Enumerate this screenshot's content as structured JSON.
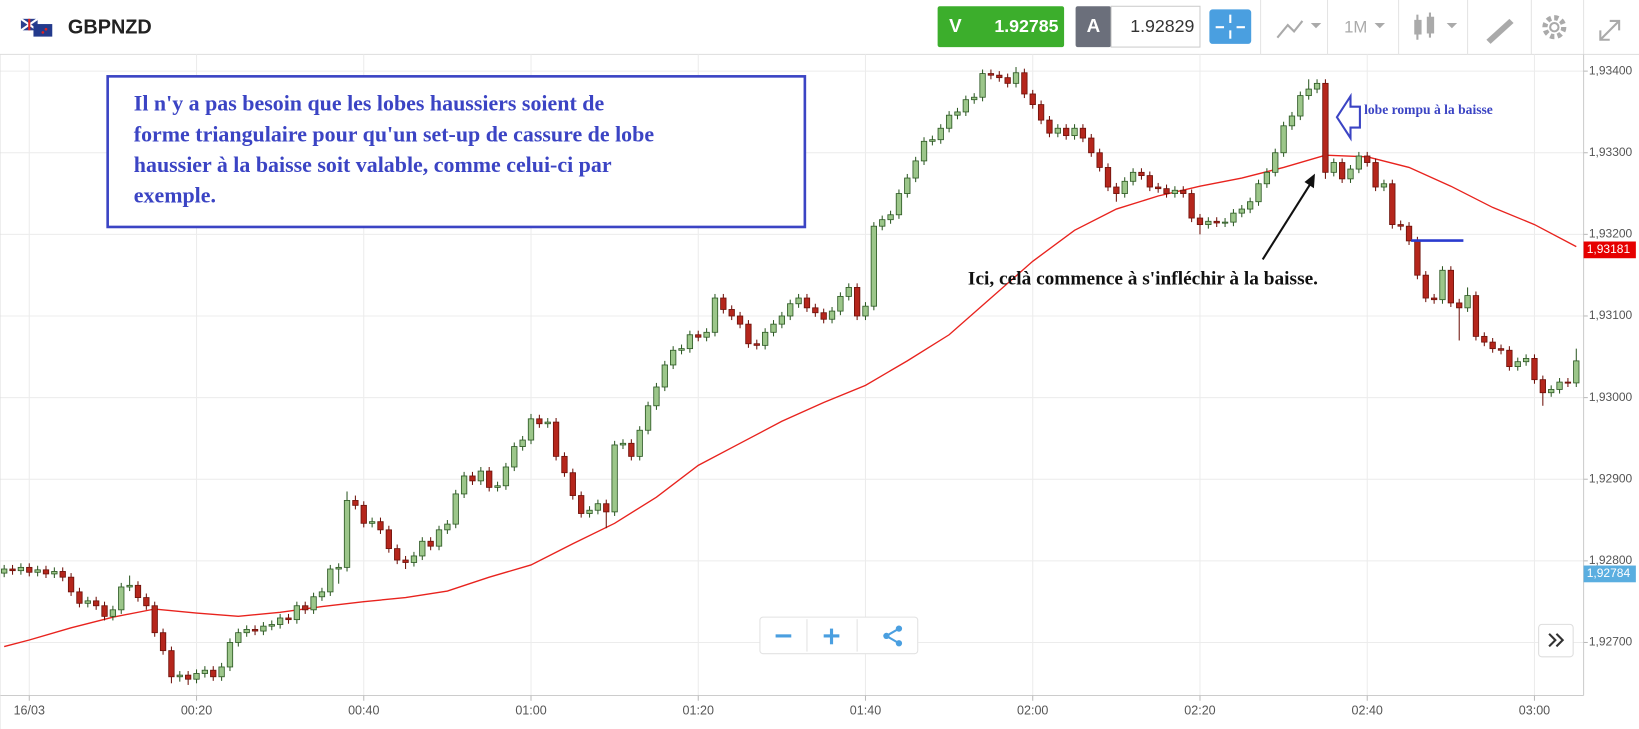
{
  "header": {
    "symbol": "GBPNZD",
    "sell_label": "V",
    "sell_price": 1.92785,
    "buy_label": "A",
    "buy_price": 1.92829,
    "timeframe": "1M"
  },
  "chart_data": {
    "type": "candlestick",
    "xlim": [
      -3.5,
      185.875
    ],
    "ylim": [
      1.92635,
      1.934205
    ],
    "xticks": [
      {
        "value": 0,
        "label": "16/03"
      },
      {
        "value": 20,
        "label": "00:20"
      },
      {
        "value": 40,
        "label": "00:40"
      },
      {
        "value": 60,
        "label": "01:00"
      },
      {
        "value": 80,
        "label": "01:20"
      },
      {
        "value": 100,
        "label": "01:40"
      },
      {
        "value": 120,
        "label": "02:00"
      },
      {
        "value": 140,
        "label": "02:20"
      },
      {
        "value": 160,
        "label": "02:40"
      },
      {
        "value": 180,
        "label": "03:00"
      }
    ],
    "yticks": [
      {
        "value": 1.927,
        "label": "1,92700"
      },
      {
        "value": 1.928,
        "label": "1,92800"
      },
      {
        "value": 1.929,
        "label": "1,92900"
      },
      {
        "value": 1.93,
        "label": "1,93000"
      },
      {
        "value": 1.931,
        "label": "1,93100"
      },
      {
        "value": 1.932,
        "label": "1,93200"
      },
      {
        "value": 1.933,
        "label": "1,93300"
      },
      {
        "value": 1.934,
        "label": "1,93400"
      }
    ],
    "grid": true,
    "up_color": "#9cc68a",
    "down_color": "#b5261c",
    "x": [
      -3,
      -2,
      -1,
      0,
      1,
      2,
      3,
      4,
      5,
      6,
      7,
      8,
      9,
      10,
      11,
      12,
      13,
      14,
      15,
      16,
      17,
      18,
      19,
      20,
      21,
      22,
      23,
      24,
      25,
      26,
      27,
      28,
      29,
      30,
      31,
      32,
      33,
      34,
      35,
      36,
      37,
      38,
      39,
      40,
      41,
      42,
      43,
      44,
      45,
      46,
      47,
      48,
      49,
      50,
      51,
      52,
      53,
      54,
      55,
      56,
      57,
      58,
      59,
      60,
      61,
      62,
      63,
      64,
      65,
      66,
      67,
      68,
      69,
      70,
      71,
      72,
      73,
      74,
      75,
      76,
      77,
      78,
      79,
      80,
      81,
      82,
      83,
      84,
      85,
      86,
      87,
      88,
      89,
      90,
      91,
      92,
      93,
      94,
      95,
      96,
      97,
      98,
      99,
      100,
      101,
      102,
      103,
      104,
      105,
      106,
      107,
      108,
      109,
      110,
      111,
      112,
      113,
      114,
      115,
      116,
      117,
      118,
      119,
      120,
      121,
      122,
      123,
      124,
      125,
      126,
      127,
      128,
      129,
      130,
      131,
      132,
      133,
      134,
      135,
      136,
      137,
      138,
      139,
      140,
      141,
      142,
      143,
      144,
      145,
      146,
      147,
      148,
      149,
      150,
      151,
      152,
      153,
      154,
      155,
      156,
      157,
      158,
      159,
      160,
      161,
      162,
      163,
      164,
      165,
      166,
      167,
      168,
      169,
      170,
      171,
      172,
      173,
      174,
      175,
      176,
      177,
      178,
      179,
      180,
      181,
      182,
      183,
      184,
      185
    ],
    "open": [
      1.92785,
      1.9279,
      1.92788,
      1.92792,
      1.92786,
      1.92789,
      1.92784,
      1.92787,
      1.9278,
      1.92762,
      1.92748,
      1.92751,
      1.92745,
      1.92732,
      1.9274,
      1.92768,
      1.9277,
      1.92755,
      1.92745,
      1.92712,
      1.9269,
      1.92658,
      1.9266,
      1.92655,
      1.92662,
      1.92666,
      1.92658,
      1.9267,
      1.927,
      1.92712,
      1.92716,
      1.92714,
      1.9272,
      1.92722,
      1.9273,
      1.92728,
      1.92745,
      1.9274,
      1.92756,
      1.92762,
      1.9279,
      1.92792,
      1.92874,
      1.92868,
      1.92846,
      1.92848,
      1.92838,
      1.92815,
      1.92801,
      1.92798,
      1.92806,
      1.92824,
      1.92818,
      1.92838,
      1.92845,
      1.92882,
      1.92904,
      1.92898,
      1.9291,
      1.9289,
      1.92892,
      1.92915,
      1.9294,
      1.92948,
      1.92974,
      1.92968,
      1.9297,
      1.92928,
      1.92908,
      1.9288,
      1.92858,
      1.92862,
      1.9287,
      1.9286,
      1.92942,
      1.92944,
      1.92928,
      1.9296,
      1.9299,
      1.93013,
      1.9304,
      1.93058,
      1.9306,
      1.93077,
      1.93074,
      1.9308,
      1.93122,
      1.93108,
      1.931,
      1.9309,
      1.93066,
      1.93064,
      1.9308,
      1.9309,
      1.931,
      1.93115,
      1.93122,
      1.9311,
      1.93104,
      1.93096,
      1.93106,
      1.93124,
      1.93135,
      1.931,
      1.93112,
      1.9321,
      1.93218,
      1.93224,
      1.9325,
      1.93269,
      1.9329,
      1.93314,
      1.93316,
      1.9333,
      1.93346,
      1.9335,
      1.93365,
      1.93368,
      1.93397,
      1.93395,
      1.93392,
      1.93385,
      1.93398,
      1.93372,
      1.93359,
      1.9334,
      1.93324,
      1.9333,
      1.93321,
      1.9333,
      1.93318,
      1.933,
      1.93282,
      1.93258,
      1.9325,
      1.93265,
      1.93276,
      1.93272,
      1.93258,
      1.93256,
      1.9325,
      1.93254,
      1.9325,
      1.9322,
      1.93212,
      1.93216,
      1.93214,
      1.93215,
      1.93226,
      1.93231,
      1.9324,
      1.93262,
      1.93276,
      1.933,
      1.93333,
      1.93345,
      1.9337,
      1.93378,
      1.93385,
      1.93276,
      1.93288,
      1.93268,
      1.9328,
      1.93296,
      1.93288,
      1.93258,
      1.93262,
      1.93212,
      1.9321,
      1.93192,
      1.9315,
      1.93122,
      1.9312,
      1.93156,
      1.93116,
      1.9311,
      1.93125,
      1.93075,
      1.93068,
      1.9306,
      1.93058,
      1.93038,
      1.93044,
      1.93048,
      1.93022,
      1.93006,
      1.9301,
      1.93019,
      1.93018
    ],
    "high": [
      1.92795,
      1.92795,
      1.92797,
      1.92797,
      1.92794,
      1.92794,
      1.92792,
      1.92792,
      1.92785,
      1.92767,
      1.92756,
      1.92756,
      1.9275,
      1.92745,
      1.92773,
      1.92782,
      1.92775,
      1.9276,
      1.9275,
      1.92717,
      1.92695,
      1.92665,
      1.92665,
      1.92667,
      1.92671,
      1.92671,
      1.92675,
      1.92705,
      1.92717,
      1.92721,
      1.92721,
      1.92725,
      1.92727,
      1.92735,
      1.92735,
      1.9275,
      1.9275,
      1.92761,
      1.92767,
      1.92795,
      1.92797,
      1.92885,
      1.9288,
      1.92873,
      1.92853,
      1.92853,
      1.92843,
      1.9282,
      1.92806,
      1.92811,
      1.92829,
      1.92829,
      1.92843,
      1.9285,
      1.92887,
      1.92909,
      1.92909,
      1.92915,
      1.92915,
      1.92897,
      1.9292,
      1.92945,
      1.92953,
      1.9298,
      1.92979,
      1.92975,
      1.92975,
      1.92933,
      1.92913,
      1.92885,
      1.92867,
      1.92875,
      1.92875,
      1.92947,
      1.92949,
      1.92949,
      1.92965,
      1.92995,
      1.93018,
      1.93045,
      1.93063,
      1.93065,
      1.93082,
      1.93082,
      1.93085,
      1.93127,
      1.93127,
      1.93113,
      1.93105,
      1.93095,
      1.93071,
      1.93085,
      1.93095,
      1.93105,
      1.9312,
      1.93127,
      1.93127,
      1.93115,
      1.93109,
      1.93111,
      1.93129,
      1.9314,
      1.9314,
      1.93117,
      1.93215,
      1.93223,
      1.93229,
      1.93255,
      1.93274,
      1.93295,
      1.93319,
      1.93321,
      1.93335,
      1.93351,
      1.93355,
      1.9337,
      1.93373,
      1.93402,
      1.93402,
      1.934,
      1.93397,
      1.93405,
      1.93403,
      1.93377,
      1.93364,
      1.93345,
      1.93335,
      1.93335,
      1.93335,
      1.93335,
      1.93323,
      1.93305,
      1.93287,
      1.93263,
      1.9327,
      1.93281,
      1.93281,
      1.93277,
      1.93263,
      1.93261,
      1.93259,
      1.93259,
      1.93255,
      1.93225,
      1.93221,
      1.93221,
      1.9322,
      1.93231,
      1.93236,
      1.93245,
      1.93267,
      1.93281,
      1.93305,
      1.93338,
      1.9335,
      1.93375,
      1.9339,
      1.9339,
      1.9339,
      1.93293,
      1.93293,
      1.93285,
      1.93301,
      1.93301,
      1.93293,
      1.93267,
      1.93267,
      1.93217,
      1.93215,
      1.93197,
      1.93155,
      1.93127,
      1.93161,
      1.93161,
      1.93121,
      1.93135,
      1.9313,
      1.9308,
      1.93073,
      1.93065,
      1.93063,
      1.93049,
      1.93053,
      1.93053,
      1.93027,
      1.93015,
      1.93024,
      1.93024,
      1.9306
    ],
    "low": [
      1.9278,
      1.92783,
      1.92783,
      1.92781,
      1.92781,
      1.92779,
      1.92779,
      1.92775,
      1.92757,
      1.92743,
      1.92743,
      1.9274,
      1.92727,
      1.92727,
      1.92735,
      1.92763,
      1.9275,
      1.9274,
      1.92707,
      1.92685,
      1.9265,
      1.92652,
      1.92648,
      1.9265,
      1.92657,
      1.92653,
      1.92653,
      1.92665,
      1.92695,
      1.92707,
      1.92709,
      1.92709,
      1.92715,
      1.92717,
      1.92723,
      1.92723,
      1.92735,
      1.92735,
      1.92751,
      1.92757,
      1.92772,
      1.92787,
      1.92863,
      1.92841,
      1.92841,
      1.92833,
      1.9281,
      1.92796,
      1.9279,
      1.92793,
      1.92801,
      1.92813,
      1.92813,
      1.92833,
      1.9284,
      1.92877,
      1.92893,
      1.92893,
      1.92885,
      1.92885,
      1.92887,
      1.9291,
      1.92935,
      1.92943,
      1.92963,
      1.92963,
      1.92923,
      1.92903,
      1.92875,
      1.92853,
      1.92853,
      1.92857,
      1.9284,
      1.92855,
      1.92937,
      1.92923,
      1.92923,
      1.92955,
      1.92985,
      1.93008,
      1.93035,
      1.93053,
      1.93055,
      1.93069,
      1.93069,
      1.93075,
      1.93103,
      1.93095,
      1.93085,
      1.93061,
      1.93059,
      1.93059,
      1.93075,
      1.93085,
      1.93095,
      1.9311,
      1.93105,
      1.93099,
      1.93091,
      1.93091,
      1.93101,
      1.93119,
      1.93095,
      1.93095,
      1.93107,
      1.93205,
      1.93213,
      1.93219,
      1.93245,
      1.93264,
      1.93285,
      1.93309,
      1.93311,
      1.93325,
      1.93341,
      1.93345,
      1.9336,
      1.93363,
      1.9339,
      1.93387,
      1.9338,
      1.9338,
      1.93367,
      1.93354,
      1.93335,
      1.93319,
      1.93319,
      1.93316,
      1.93316,
      1.93313,
      1.93295,
      1.93277,
      1.93253,
      1.9324,
      1.93245,
      1.9326,
      1.93267,
      1.93253,
      1.93251,
      1.93245,
      1.93245,
      1.93245,
      1.93215,
      1.932,
      1.93207,
      1.93209,
      1.93209,
      1.9321,
      1.93221,
      1.93226,
      1.93235,
      1.93257,
      1.93271,
      1.93295,
      1.93328,
      1.9334,
      1.93365,
      1.93373,
      1.93268,
      1.93271,
      1.93263,
      1.93263,
      1.93275,
      1.93283,
      1.93253,
      1.93253,
      1.93207,
      1.93205,
      1.93187,
      1.93145,
      1.93117,
      1.93115,
      1.93115,
      1.93111,
      1.9307,
      1.93105,
      1.9307,
      1.93063,
      1.93055,
      1.93053,
      1.93033,
      1.93033,
      1.93039,
      1.93017,
      1.9299,
      1.93001,
      1.93005,
      1.93013,
      1.93013
    ],
    "close": [
      1.9279,
      1.92788,
      1.92792,
      1.92786,
      1.92789,
      1.92784,
      1.92787,
      1.9278,
      1.92762,
      1.92748,
      1.92751,
      1.92745,
      1.92732,
      1.9274,
      1.92768,
      1.9277,
      1.92755,
      1.92745,
      1.92712,
      1.9269,
      1.92658,
      1.9266,
      1.92655,
      1.92662,
      1.92666,
      1.92658,
      1.9267,
      1.927,
      1.92712,
      1.92716,
      1.92714,
      1.9272,
      1.92722,
      1.9273,
      1.92728,
      1.92745,
      1.9274,
      1.92756,
      1.92762,
      1.9279,
      1.92792,
      1.92874,
      1.92868,
      1.92846,
      1.92848,
      1.92838,
      1.92815,
      1.92801,
      1.92798,
      1.92806,
      1.92824,
      1.92818,
      1.92838,
      1.92845,
      1.92882,
      1.92904,
      1.92898,
      1.9291,
      1.9289,
      1.92892,
      1.92915,
      1.9294,
      1.92948,
      1.92974,
      1.92968,
      1.9297,
      1.92928,
      1.92908,
      1.9288,
      1.92858,
      1.92862,
      1.9287,
      1.9286,
      1.92942,
      1.92944,
      1.92928,
      1.9296,
      1.9299,
      1.93013,
      1.9304,
      1.93058,
      1.9306,
      1.93077,
      1.93074,
      1.9308,
      1.93122,
      1.93108,
      1.931,
      1.9309,
      1.93066,
      1.93064,
      1.9308,
      1.9309,
      1.931,
      1.93115,
      1.93122,
      1.9311,
      1.93104,
      1.93096,
      1.93106,
      1.93124,
      1.93135,
      1.931,
      1.93112,
      1.9321,
      1.93218,
      1.93224,
      1.9325,
      1.93269,
      1.9329,
      1.93314,
      1.93316,
      1.9333,
      1.93346,
      1.9335,
      1.93365,
      1.93368,
      1.93397,
      1.93395,
      1.93392,
      1.93385,
      1.93398,
      1.93372,
      1.93359,
      1.9334,
      1.93324,
      1.9333,
      1.93321,
      1.9333,
      1.93318,
      1.933,
      1.93282,
      1.93258,
      1.9325,
      1.93265,
      1.93276,
      1.93272,
      1.93258,
      1.93256,
      1.9325,
      1.93254,
      1.9325,
      1.9322,
      1.93212,
      1.93216,
      1.93214,
      1.93215,
      1.93226,
      1.93231,
      1.9324,
      1.93262,
      1.93276,
      1.933,
      1.93333,
      1.93345,
      1.9337,
      1.93378,
      1.93385,
      1.93276,
      1.93288,
      1.93268,
      1.9328,
      1.93296,
      1.93288,
      1.93258,
      1.93262,
      1.93212,
      1.9321,
      1.93192,
      1.9315,
      1.93122,
      1.9312,
      1.93156,
      1.93116,
      1.9311,
      1.93125,
      1.93075,
      1.93068,
      1.9306,
      1.93058,
      1.93038,
      1.93044,
      1.93048,
      1.93022,
      1.93006,
      1.9301,
      1.93019,
      1.93018,
      1.93045
    ],
    "overlays": [
      {
        "type": "line",
        "color": "#e8231e",
        "x": [
          -3,
          0,
          5,
          10,
          15,
          20,
          25,
          30,
          35,
          40,
          45,
          50,
          55,
          60,
          65,
          70,
          75,
          80,
          85,
          90,
          95,
          100,
          105,
          110,
          115,
          120,
          125,
          130,
          135,
          140,
          145,
          150,
          155,
          160,
          165,
          170,
          175,
          180,
          185
        ],
        "values": [
          1.92695,
          1.92703,
          1.92718,
          1.92731,
          1.92741,
          1.92736,
          1.92732,
          1.92737,
          1.92744,
          1.9275,
          1.92755,
          1.92763,
          1.9278,
          1.92795,
          1.92821,
          1.92846,
          1.92878,
          1.92917,
          1.92944,
          1.92971,
          1.92994,
          1.93015,
          1.93045,
          1.93077,
          1.93122,
          1.93167,
          1.93205,
          1.93231,
          1.93247,
          1.93259,
          1.93269,
          1.93282,
          1.93297,
          1.93295,
          1.93282,
          1.93259,
          1.93233,
          1.93212,
          1.93185
        ]
      }
    ],
    "price_badges": [
      {
        "value": 1.93181,
        "label": "1,93181",
        "color": "#e60000"
      },
      {
        "value": 1.92784,
        "label": "1,92784",
        "color": "#5aaee0"
      }
    ],
    "note_box": [
      "Il n'y a pas besoin que les lobes haussiers soient de",
      "forme triangulaire pour qu'un set-up de cassure de lobe",
      "haussier à la baisse soit valable, comme celui-ci par",
      "exemple."
    ],
    "annotations": [
      "Ici, celà commence à s'infléchir à la baisse.",
      "lobe rompu à la baisse"
    ]
  }
}
